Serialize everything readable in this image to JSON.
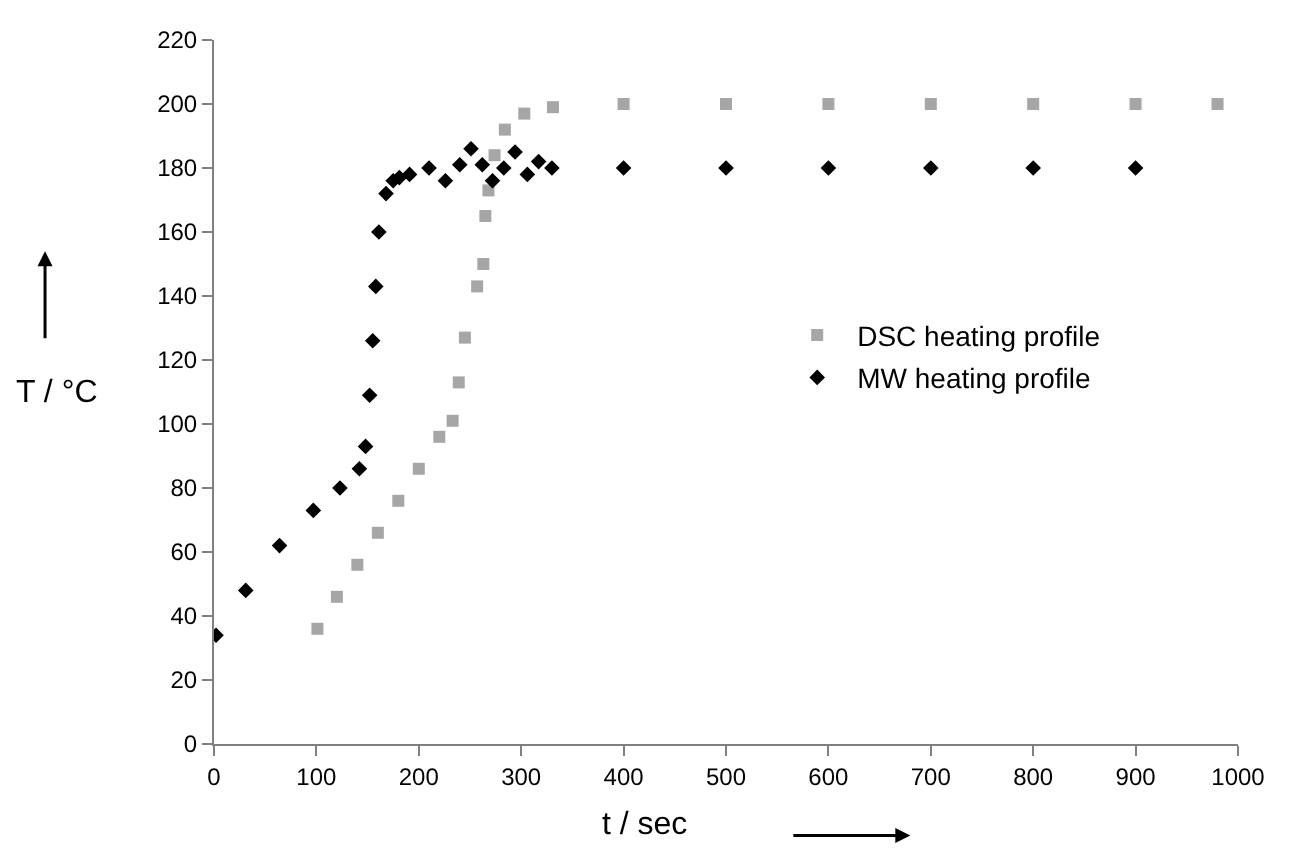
{
  "chart_data": {
    "type": "scatter",
    "xlabel": "t / sec",
    "ylabel": "T / °C",
    "xlim": [
      0,
      1000
    ],
    "xticks": [
      0,
      100,
      200,
      300,
      400,
      500,
      600,
      700,
      800,
      900,
      1000
    ],
    "ylim": [
      0,
      220
    ],
    "yticks": [
      0,
      20,
      40,
      60,
      80,
      100,
      120,
      140,
      160,
      180,
      200,
      220
    ],
    "legend": "right",
    "series": [
      {
        "name": "DSC heating profile",
        "color": "#a6a6a6",
        "marker": "square",
        "x": [
          101,
          120,
          140,
          160,
          180,
          200,
          220,
          233,
          239,
          245,
          257,
          263,
          265,
          268,
          274,
          284,
          303,
          331,
          400,
          500,
          600,
          700,
          800,
          900,
          980
        ],
        "values": [
          36,
          46,
          56,
          66,
          76,
          86,
          96,
          101,
          113,
          127,
          143,
          150,
          165,
          173,
          184,
          192,
          197,
          199,
          200,
          200,
          200,
          200,
          200,
          200,
          200
        ]
      },
      {
        "name": "MW heating profile",
        "color": "#000000",
        "marker": "diamond",
        "x": [
          2,
          31,
          64,
          97,
          123,
          142,
          148,
          152,
          155,
          158,
          161,
          168,
          175,
          181,
          191,
          210,
          226,
          240,
          251,
          262,
          272,
          283,
          294,
          306,
          317,
          330,
          400,
          500,
          600,
          700,
          800,
          900
        ],
        "values": [
          34,
          48,
          62,
          73,
          80,
          86,
          93,
          109,
          126,
          143,
          160,
          172,
          176,
          177,
          178,
          180,
          176,
          181,
          186,
          181,
          176,
          180,
          185,
          178,
          182,
          180,
          180,
          180,
          180,
          180,
          180,
          180
        ]
      }
    ]
  }
}
